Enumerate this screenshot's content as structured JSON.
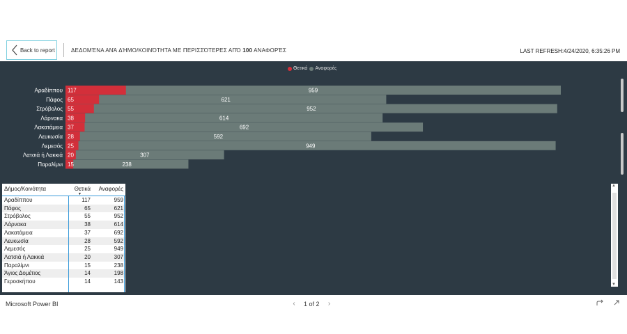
{
  "header": {
    "back_label": "Back to report",
    "title_prefix": "ΔΕΔΟΜΈΝΑ ΑΝΆ ΔΉΜΟ/ΚΟΙΝΌΤΗΤΑ ΜΕ ΠΕΡΙΣΣΌΤΕΡΕΣ ΑΠΌ ",
    "title_number": "100",
    "title_suffix": " ΑΝΑΦΟΡΈΣ",
    "last_refresh": "LAST REFRESH:4/24/2020, 6:35:26 PM"
  },
  "legend": {
    "items": [
      {
        "label": "Θετικά",
        "color": "#d32f3a"
      },
      {
        "label": "Αναφορές",
        "color": "#6b7b78"
      }
    ]
  },
  "chart_data": {
    "type": "bar",
    "orientation": "horizontal",
    "categories": [
      "Αραδίππου",
      "Πάφος",
      "Στρόβολος",
      "Λάρνακα",
      "Λακατάμεια",
      "Λευκωσία",
      "Λεμεσός",
      "Λατσιά ή Λακκιά",
      "Παραλίμνι"
    ],
    "series": [
      {
        "name": "Θετικά",
        "color": "#d32f3a",
        "values": [
          117,
          65,
          55,
          38,
          37,
          28,
          25,
          20,
          15
        ]
      },
      {
        "name": "Αναφορές",
        "color": "#6b7b78",
        "values": [
          959,
          621,
          952,
          614,
          692,
          592,
          949,
          307,
          238
        ]
      }
    ],
    "stacked": false,
    "overlapped": true,
    "xlim": [
      0,
      1000
    ],
    "grid": false,
    "legend_position": "top-center"
  },
  "table": {
    "columns": [
      "Δήμος/Κοινότητα",
      "Θετικά",
      "Αναφορές"
    ],
    "rows": [
      [
        "Αραδίππου",
        "117",
        "959"
      ],
      [
        "Πάφος",
        "65",
        "621"
      ],
      [
        "Στρόβολος",
        "55",
        "952"
      ],
      [
        "Λάρνακα",
        "38",
        "614"
      ],
      [
        "Λακατάμεια",
        "37",
        "692"
      ],
      [
        "Λευκωσία",
        "28",
        "592"
      ],
      [
        "Λεμεσός",
        "25",
        "949"
      ],
      [
        "Λατσιά ή Λακκιά",
        "20",
        "307"
      ],
      [
        "Παραλίμνι",
        "15",
        "238"
      ],
      [
        "Άγιος Δομέτιος",
        "14",
        "198"
      ],
      [
        "Γεροσκήπου",
        "14",
        "143"
      ]
    ]
  },
  "footer": {
    "brand": "Microsoft Power BI",
    "pager": "1 of 2"
  }
}
